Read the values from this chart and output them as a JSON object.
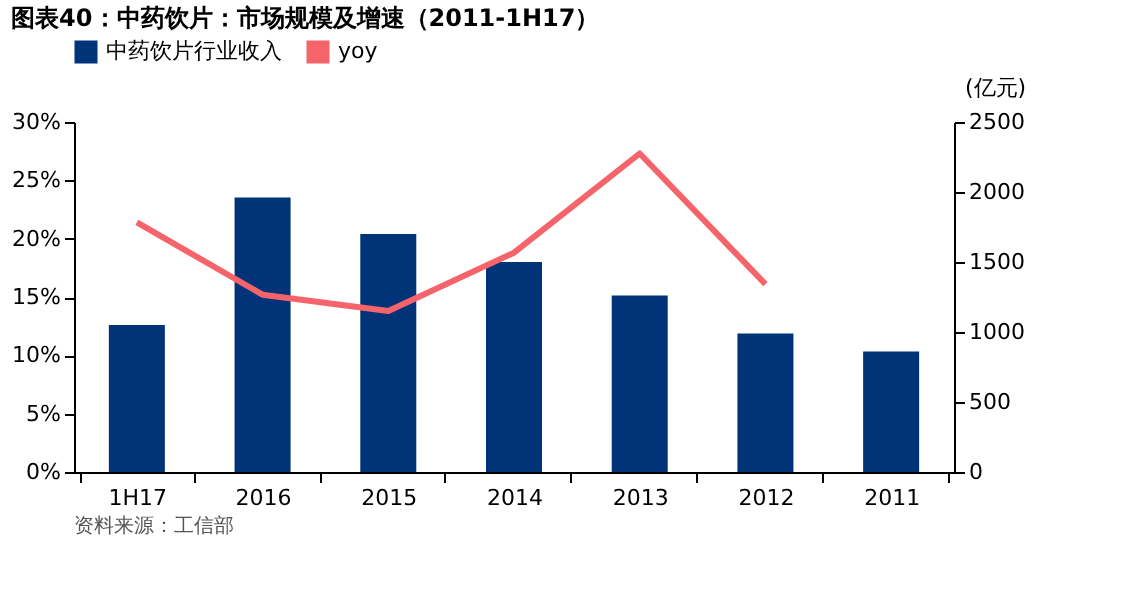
{
  "chart_data": {
    "type": "bar",
    "title": "图表40：中药饮片：市场规模及增速（2011-1H17）",
    "categories": [
      "1H17",
      "2016",
      "2015",
      "2014",
      "2013",
      "2012",
      "2011"
    ],
    "series": [
      {
        "name": "中药饮片行业收入",
        "axis": "y2",
        "color": "#003378",
        "values": [
          1050,
          1960,
          1700,
          1500,
          1260,
          990,
          860
        ]
      },
      {
        "name": "yoy",
        "type": "line",
        "axis": "y",
        "color": "#f4646a",
        "values": [
          21.4,
          15.2,
          13.8,
          18.8,
          27.3,
          16.1,
          null
        ]
      }
    ],
    "ylim": [
      0,
      30
    ],
    "yticks": [
      {
        "value": 0,
        "label": "0%"
      },
      {
        "value": 5,
        "label": "5%"
      },
      {
        "value": 10,
        "label": "10%"
      },
      {
        "value": 15,
        "label": "15%"
      },
      {
        "value": 20,
        "label": "20%"
      },
      {
        "value": 25,
        "label": "25%"
      },
      {
        "value": 30,
        "label": "30%"
      }
    ],
    "y2lim": [
      0,
      2500
    ],
    "y2ticks": [
      0,
      500,
      1000,
      1500,
      2000,
      2500
    ],
    "y2label": "(亿元)",
    "legend": "top",
    "grid": false,
    "marker": "none",
    "line_style": "solid",
    "annotations": [
      "资料来源：工信部"
    ]
  }
}
